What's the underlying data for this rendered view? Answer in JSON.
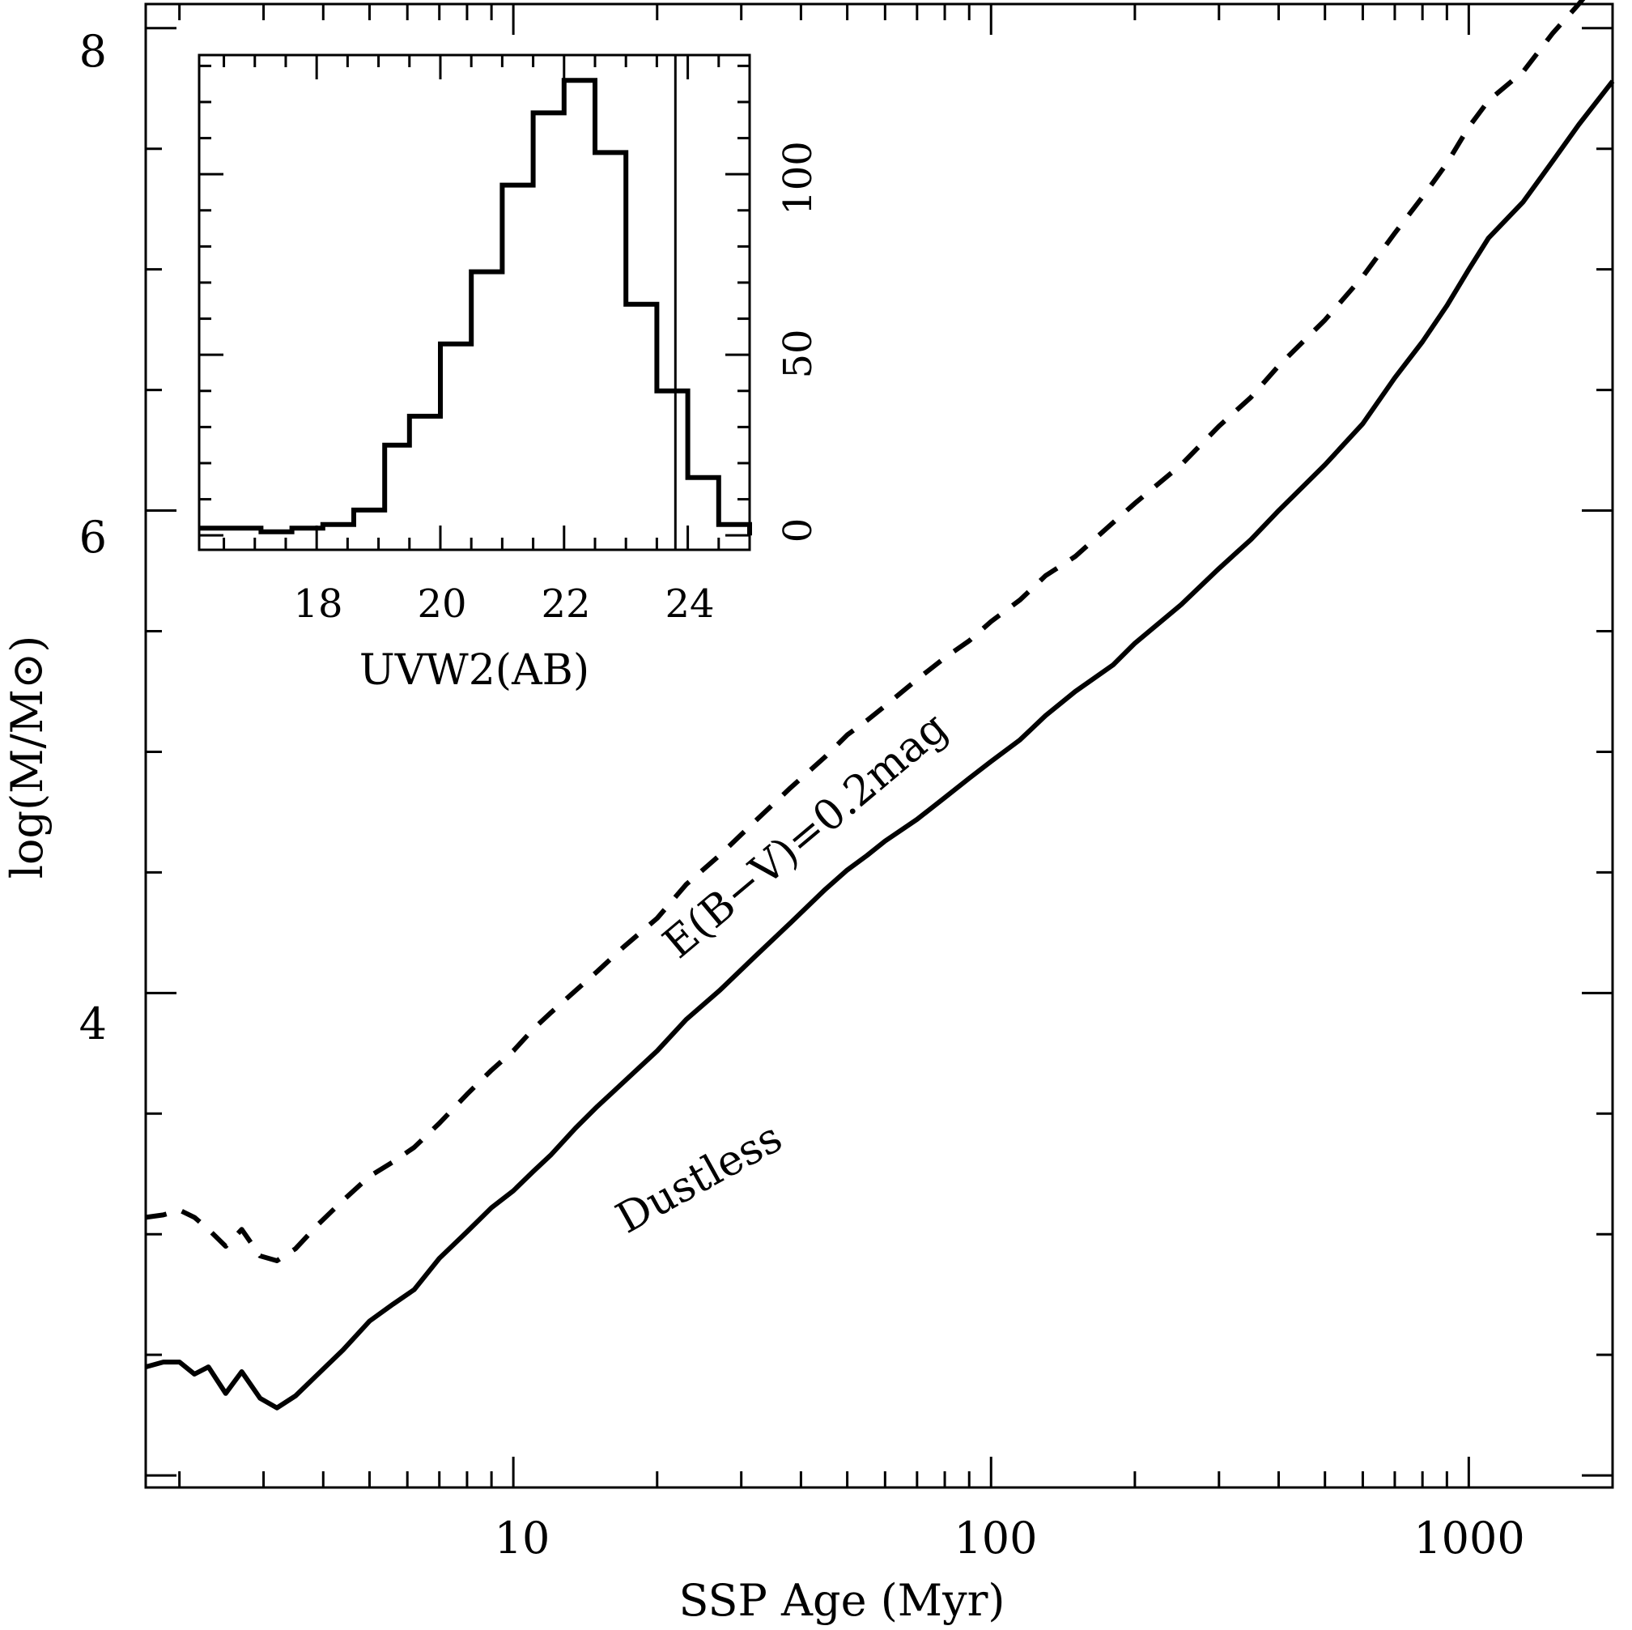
{
  "chart_data": [
    {
      "type": "line",
      "xlabel": "SSP Age (Myr)",
      "ylabel": "log(M/M⊙)",
      "x_scale": "log",
      "xlim": [
        1.7,
        2000
      ],
      "ylim": [
        1.95,
        8.1
      ],
      "x_tick_labels": [
        "10",
        "100",
        "1000"
      ],
      "y_tick_labels": [
        "4",
        "6",
        "8"
      ],
      "series": [
        {
          "name": "Dustless",
          "style": "solid",
          "x": [
            1.7,
            1.85,
            2.0,
            2.15,
            2.3,
            2.5,
            2.7,
            2.95,
            3.2,
            3.5,
            3.9,
            4.4,
            5.0,
            5.6,
            6.2,
            7.0,
            8.0,
            9.0,
            10,
            11,
            12,
            13.5,
            15,
            17,
            20,
            23,
            27,
            32,
            38,
            45,
            50,
            55,
            60,
            70,
            80,
            90,
            100,
            115,
            130,
            150,
            180,
            200,
            250,
            300,
            350,
            400,
            500,
            600,
            700,
            800,
            900,
            1000,
            1100,
            1300,
            1500,
            1700,
            2000
          ],
          "y": [
            2.45,
            2.47,
            2.47,
            2.42,
            2.45,
            2.34,
            2.43,
            2.32,
            2.28,
            2.33,
            2.42,
            2.52,
            2.64,
            2.71,
            2.77,
            2.9,
            3.01,
            3.11,
            3.18,
            3.26,
            3.33,
            3.44,
            3.53,
            3.63,
            3.76,
            3.89,
            4.01,
            4.15,
            4.29,
            4.43,
            4.51,
            4.57,
            4.63,
            4.72,
            4.81,
            4.89,
            4.96,
            5.05,
            5.15,
            5.25,
            5.36,
            5.45,
            5.61,
            5.76,
            5.88,
            6.0,
            6.19,
            6.36,
            6.55,
            6.7,
            6.85,
            7.0,
            7.13,
            7.28,
            7.45,
            7.6,
            7.78
          ]
        },
        {
          "name": "E(B−V)=0.2mag",
          "style": "dashed",
          "x": [
            1.7,
            1.85,
            2.0,
            2.15,
            2.3,
            2.5,
            2.7,
            2.95,
            3.2,
            3.5,
            3.9,
            4.4,
            5.0,
            5.6,
            6.2,
            7.0,
            8.0,
            9.0,
            10,
            11,
            12,
            13.5,
            15,
            17,
            20,
            23,
            27,
            32,
            38,
            45,
            50,
            55,
            60,
            70,
            80,
            90,
            100,
            115,
            130,
            150,
            180,
            200,
            250,
            300,
            350,
            400,
            500,
            600,
            700,
            800,
            900,
            1000,
            1100,
            1300,
            1500,
            1700,
            2000
          ],
          "y": [
            3.07,
            3.08,
            3.1,
            3.07,
            3.02,
            2.95,
            3.02,
            2.91,
            2.89,
            2.94,
            3.04,
            3.14,
            3.24,
            3.3,
            3.36,
            3.46,
            3.58,
            3.68,
            3.76,
            3.85,
            3.92,
            4.01,
            4.09,
            4.19,
            4.31,
            4.45,
            4.57,
            4.71,
            4.85,
            4.98,
            5.07,
            5.13,
            5.19,
            5.3,
            5.39,
            5.46,
            5.54,
            5.63,
            5.73,
            5.81,
            5.95,
            6.03,
            6.19,
            6.35,
            6.47,
            6.6,
            6.79,
            6.97,
            7.15,
            7.3,
            7.44,
            7.59,
            7.7,
            7.82,
            7.98,
            8.1,
            8.27
          ]
        }
      ]
    },
    {
      "type": "bar",
      "style": "step histogram",
      "xlabel": "UVW2(AB)",
      "ylabel": "",
      "xlim": [
        16.1,
        25.0
      ],
      "ylim": [
        -4,
        133
      ],
      "y_axis_side": "right",
      "x_tick_labels": [
        "18",
        "20",
        "22",
        "24"
      ],
      "y_tick_labels": [
        "0",
        "50",
        "100"
      ],
      "bin_edges": [
        16.1,
        16.6,
        17.1,
        17.6,
        18.1,
        18.6,
        19.1,
        19.5,
        20.0,
        20.5,
        21.0,
        21.5,
        22.0,
        22.5,
        23.0,
        23.5,
        24.0,
        24.5,
        25.0
      ],
      "counts": [
        2,
        2,
        1,
        2,
        3,
        7,
        25,
        33,
        53,
        73,
        97,
        117,
        126,
        106,
        64,
        40,
        16,
        3,
        0
      ],
      "vertical_line_x": 23.8
    }
  ],
  "annotations": {
    "dustless_label": "Dustless",
    "dust_label": "E(B−V)=0.2mag"
  }
}
